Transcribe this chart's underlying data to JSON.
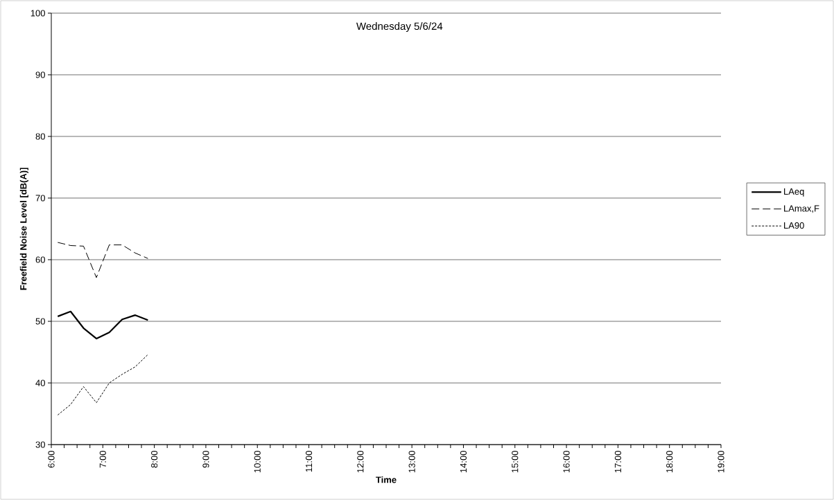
{
  "chart_data": {
    "type": "line",
    "title": "Wednesday 5/6/24",
    "xlabel": "Time",
    "ylabel": "Freefield Noise Level [dB(A)]",
    "x": [
      6.125,
      6.375,
      6.625,
      6.875,
      7.125,
      7.375,
      7.625,
      7.875
    ],
    "series": [
      {
        "name": "LAeq",
        "color": "#000000",
        "line_style": "solid",
        "values": [
          50.8,
          51.6,
          48.9,
          47.2,
          48.2,
          50.3,
          51.0,
          50.2
        ]
      },
      {
        "name": "LAmax,F",
        "color": "#000000",
        "line_style": "dashed",
        "values": [
          62.8,
          62.3,
          62.2,
          57.1,
          62.4,
          62.4,
          61.1,
          60.2
        ]
      },
      {
        "name": "LA90",
        "color": "#000000",
        "line_style": "dotted",
        "values": [
          34.8,
          36.5,
          39.4,
          36.8,
          40.0,
          41.4,
          42.6,
          44.6
        ]
      }
    ],
    "xlim": [
      6,
      19
    ],
    "ylim": [
      30,
      100
    ],
    "xticks": [
      {
        "value": 6,
        "label": "6:00"
      },
      {
        "value": 6.25,
        "label": null
      },
      {
        "value": 6.5,
        "label": null
      },
      {
        "value": 6.75,
        "label": null
      },
      {
        "value": 7,
        "label": "7:00"
      },
      {
        "value": 7.25,
        "label": null
      },
      {
        "value": 7.5,
        "label": null
      },
      {
        "value": 7.75,
        "label": null
      },
      {
        "value": 8,
        "label": "8:00"
      },
      {
        "value": 8.25,
        "label": null
      },
      {
        "value": 8.5,
        "label": null
      },
      {
        "value": 8.75,
        "label": null
      },
      {
        "value": 9,
        "label": "9:00"
      },
      {
        "value": 9.25,
        "label": null
      },
      {
        "value": 9.5,
        "label": null
      },
      {
        "value": 9.75,
        "label": null
      },
      {
        "value": 10,
        "label": "10:00"
      },
      {
        "value": 10.25,
        "label": null
      },
      {
        "value": 10.5,
        "label": null
      },
      {
        "value": 10.75,
        "label": null
      },
      {
        "value": 11,
        "label": "11:00"
      },
      {
        "value": 11.25,
        "label": null
      },
      {
        "value": 11.5,
        "label": null
      },
      {
        "value": 11.75,
        "label": null
      },
      {
        "value": 12,
        "label": "12:00"
      },
      {
        "value": 12.25,
        "label": null
      },
      {
        "value": 12.5,
        "label": null
      },
      {
        "value": 12.75,
        "label": null
      },
      {
        "value": 13,
        "label": "13:00"
      },
      {
        "value": 13.25,
        "label": null
      },
      {
        "value": 13.5,
        "label": null
      },
      {
        "value": 13.75,
        "label": null
      },
      {
        "value": 14,
        "label": "14:00"
      },
      {
        "value": 14.25,
        "label": null
      },
      {
        "value": 14.5,
        "label": null
      },
      {
        "value": 14.75,
        "label": null
      },
      {
        "value": 15,
        "label": "15:00"
      },
      {
        "value": 15.25,
        "label": null
      },
      {
        "value": 15.5,
        "label": null
      },
      {
        "value": 15.75,
        "label": null
      },
      {
        "value": 16,
        "label": "16:00"
      },
      {
        "value": 16.25,
        "label": null
      },
      {
        "value": 16.5,
        "label": null
      },
      {
        "value": 16.75,
        "label": null
      },
      {
        "value": 17,
        "label": "17:00"
      },
      {
        "value": 17.25,
        "label": null
      },
      {
        "value": 17.5,
        "label": null
      },
      {
        "value": 17.75,
        "label": null
      },
      {
        "value": 18,
        "label": "18:00"
      },
      {
        "value": 18.25,
        "label": null
      },
      {
        "value": 18.5,
        "label": null
      },
      {
        "value": 18.75,
        "label": null
      },
      {
        "value": 19,
        "label": "19:00"
      }
    ],
    "yticks": [
      30,
      40,
      50,
      60,
      70,
      80,
      90,
      100
    ],
    "grid": "y",
    "legend": "right"
  }
}
